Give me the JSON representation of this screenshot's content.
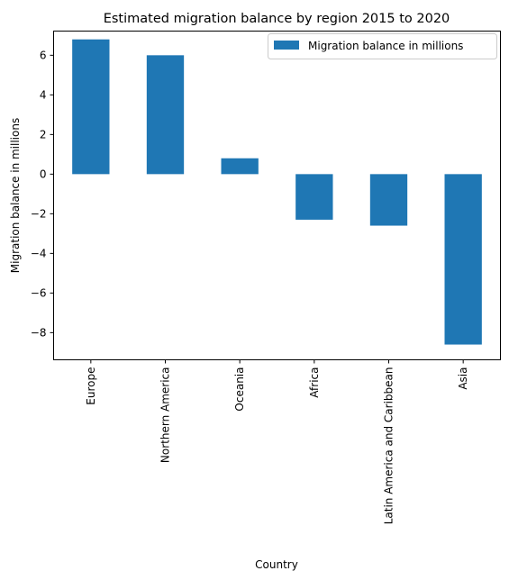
{
  "chart_data": {
    "type": "bar",
    "title": "Estimated migration balance by region 2015 to 2020",
    "xlabel": "Country",
    "ylabel": "Migration balance in millions",
    "categories": [
      "Europe",
      "Northern America",
      "Oceania",
      "Africa",
      "Latin America and Caribbean",
      "Asia"
    ],
    "series": [
      {
        "name": "Migration balance in millions",
        "values": [
          6.8,
          6.0,
          0.8,
          -2.3,
          -2.6,
          -8.6
        ],
        "color": "#1f77b4"
      }
    ],
    "ylim": [
      -9.37,
      7.22
    ],
    "yticks": [
      6,
      4,
      2,
      0,
      -2,
      -4,
      -6,
      -8
    ],
    "ytick_labels": [
      "6",
      "4",
      "2",
      "0",
      "−2",
      "−4",
      "−6",
      "−8"
    ],
    "grid": false,
    "legend": "top-right"
  }
}
